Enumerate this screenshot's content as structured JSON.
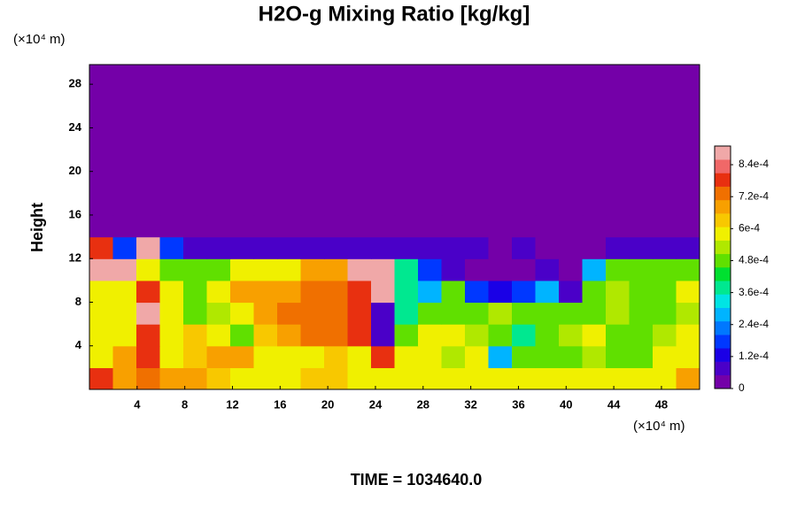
{
  "chart_data": {
    "type": "heatmap",
    "title": "H2O-g Mixing Ratio [kg/kg]",
    "y_label": "Height",
    "y_unit": "(×10⁴ m)",
    "x_unit": "(×10⁴ m)",
    "footer": "TIME = 1034640.0",
    "xlim": [
      0,
      51.2
    ],
    "ylim": [
      0,
      29.8
    ],
    "xticks": [
      4,
      8,
      12,
      16,
      20,
      24,
      28,
      32,
      36,
      40,
      44,
      48
    ],
    "yticks": [
      4,
      8,
      12,
      16,
      20,
      24,
      28
    ],
    "zlim": [
      0,
      0.00091
    ],
    "zticks": [
      0,
      {
        "value": 0.00012,
        "label": "1.2e-4"
      },
      {
        "value": 0.00024,
        "label": "2.4e-4"
      },
      {
        "value": 0.00036,
        "label": "3.6e-4"
      },
      {
        "value": 0.00048,
        "label": "4.8e-4"
      },
      {
        "value": 0.0006,
        "label": "6e-4"
      },
      {
        "value": 0.00072,
        "label": "7.2e-4"
      },
      {
        "value": 0.00084,
        "label": "8.4e-4"
      }
    ],
    "colors": [
      "#7400a8",
      "#4a00c8",
      "#1a00e6",
      "#0038ff",
      "#0078ff",
      "#00b4ff",
      "#00e4e4",
      "#00e890",
      "#00e030",
      "#60e000",
      "#b0e800",
      "#f0f000",
      "#f8c800",
      "#f8a000",
      "#f07000",
      "#e83010",
      "#f06868",
      "#f0a8a8"
    ],
    "z": [
      [
        0.0008,
        0.0007,
        0.00075,
        0.0007,
        0.0007,
        0.00065,
        0.0006,
        0.0006,
        0.0006,
        0.00062,
        0.00062,
        0.0006,
        0.0006,
        0.0006,
        0.0006,
        0.00058,
        0.0006,
        0.0006,
        0.0006,
        0.00058,
        0.0006,
        0.0006,
        0.0006,
        0.00058,
        0.0006,
        0.0007
      ],
      [
        0.0006,
        0.0007,
        0.0008,
        0.0006,
        0.00065,
        0.0007,
        0.0007,
        0.0006,
        0.0006,
        0.0006,
        0.00065,
        0.0006,
        0.0008,
        0.0006,
        0.0006,
        0.00055,
        0.0006,
        0.0003,
        0.0005,
        0.0005,
        0.0005,
        0.00055,
        0.0005,
        0.0005,
        0.0006,
        0.0006
      ],
      [
        0.0006,
        0.0006,
        0.0008,
        0.0006,
        0.00065,
        0.0006,
        0.0005,
        0.00065,
        0.0007,
        0.00072,
        0.00072,
        0.0008,
        0.0001,
        0.0005,
        0.0006,
        0.0006,
        0.00055,
        0.0005,
        0.0004,
        0.0005,
        0.00055,
        0.0006,
        0.0005,
        0.0005,
        0.00055,
        0.0006
      ],
      [
        0.0006,
        0.0006,
        0.0009,
        0.0006,
        0.0005,
        0.00055,
        0.0006,
        0.0007,
        0.00072,
        0.00072,
        0.00072,
        0.0008,
        0.0001,
        0.0004,
        0.0005,
        0.0005,
        0.0005,
        0.00055,
        0.0005,
        0.0005,
        0.0005,
        0.0005,
        0.00055,
        0.0005,
        0.0005,
        0.00055
      ],
      [
        0.0006,
        0.0006,
        0.0008,
        0.0006,
        0.0005,
        0.0006,
        0.0007,
        0.0007,
        0.0007,
        0.00072,
        0.00075,
        0.0008,
        0.0009,
        0.0004,
        0.0003,
        0.0005,
        0.0002,
        0.00015,
        0.0002,
        0.0003,
        0.0001,
        0.0005,
        0.00055,
        0.0005,
        0.0005,
        0.0006
      ],
      [
        0.00088,
        0.00088,
        0.0006,
        0.0005,
        0.0005,
        0.0005,
        0.0006,
        0.0006,
        0.0006,
        0.0007,
        0.0007,
        0.0009,
        0.0009,
        0.0004,
        0.0002,
        8e-05,
        4e-05,
        4e-05,
        4e-05,
        0.0001,
        3e-05,
        0.0003,
        0.0005,
        0.0005,
        0.0005,
        0.0005
      ],
      [
        0.0008,
        0.0002,
        0.0009,
        0.0002,
        0.0001,
        0.0001,
        0.0001,
        0.0001,
        0.0001,
        0.0001,
        0.0001,
        0.0001,
        0.0001,
        0.0001,
        0.0001,
        0.0001,
        0.0001,
        5e-05,
        0.0001,
        5e-05,
        3e-05,
        5e-05,
        0.0001,
        0.0001,
        0.0001,
        0.0001
      ],
      [
        0,
        0,
        0,
        0,
        0,
        0,
        0,
        0,
        0,
        0,
        0,
        0,
        0,
        0,
        0,
        0,
        0,
        0,
        0,
        0,
        0,
        0,
        0,
        0,
        0,
        0
      ],
      [
        0,
        0,
        0,
        0,
        0,
        0,
        0,
        0,
        0,
        0,
        0,
        0,
        0,
        0,
        0,
        0,
        0,
        0,
        0,
        0,
        0,
        0,
        0,
        0,
        0,
        0
      ],
      [
        0,
        0,
        0,
        0,
        0,
        0,
        0,
        0,
        0,
        0,
        0,
        0,
        0,
        0,
        0,
        0,
        0,
        0,
        0,
        0,
        0,
        0,
        0,
        0,
        0,
        0
      ],
      [
        0,
        0,
        0,
        0,
        0,
        0,
        0,
        0,
        0,
        0,
        0,
        0,
        0,
        0,
        0,
        0,
        0,
        0,
        0,
        0,
        0,
        0,
        0,
        0,
        0,
        0
      ],
      [
        0,
        0,
        0,
        0,
        0,
        0,
        0,
        0,
        0,
        0,
        0,
        0,
        0,
        0,
        0,
        0,
        0,
        0,
        0,
        0,
        0,
        0,
        0,
        0,
        0,
        0
      ],
      [
        0,
        0,
        0,
        0,
        0,
        0,
        0,
        0,
        0,
        0,
        0,
        0,
        0,
        0,
        0,
        0,
        0,
        0,
        0,
        0,
        0,
        0,
        0,
        0,
        0,
        0
      ],
      [
        0,
        0,
        0,
        0,
        0,
        0,
        0,
        0,
        0,
        0,
        0,
        0,
        0,
        0,
        0,
        0,
        0,
        0,
        0,
        0,
        0,
        0,
        0,
        0,
        0,
        0
      ],
      [
        0,
        0,
        0,
        0,
        0,
        0,
        0,
        0,
        0,
        0,
        0,
        0,
        0,
        0,
        0,
        0,
        0,
        0,
        0,
        0,
        0,
        0,
        0,
        0,
        0,
        0
      ]
    ]
  }
}
